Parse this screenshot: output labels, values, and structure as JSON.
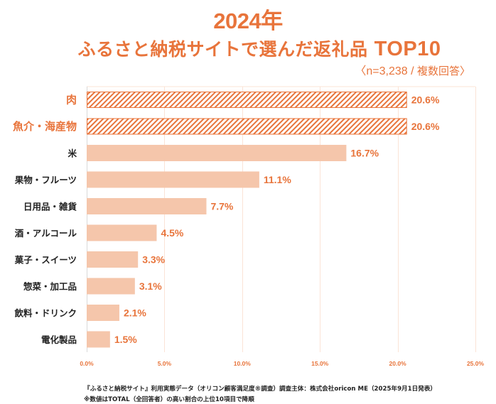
{
  "header": {
    "year": "2024年",
    "title_jp": "ふるさと納税サイトで選んだ返礼品 ",
    "title_en": "TOP10",
    "sample_prefix": "〈n=3,238 / ",
    "sample_jp": "複数回答〉"
  },
  "colors": {
    "accent": "#E8743B",
    "bar_fill": "#F5C6AB",
    "highlight_hatch": "#E8743B",
    "gridline": "#FBE3D6",
    "text_dark": "#222222"
  },
  "chart_data": {
    "type": "bar",
    "orientation": "horizontal",
    "title": "2024年 ふるさと納税サイトで選んだ返礼品 TOP10",
    "subtitle": "〈n=3,238 / 複数回答〉",
    "xlabel": "",
    "ylabel": "",
    "xlim": [
      0,
      25
    ],
    "x_ticks": [
      0,
      5,
      10,
      15,
      20,
      25
    ],
    "x_tick_labels": [
      "0.0%",
      "5.0%",
      "10.0%",
      "15.0%",
      "20.0%",
      "25.0%"
    ],
    "grid": true,
    "legend": "none",
    "categories": [
      "肉",
      "魚介・海産物",
      "米",
      "果物・フルーツ",
      "日用品・雑貨",
      "酒・アルコール",
      "菓子・スイーツ",
      "惣菜・加工品",
      "飲料・ドリンク",
      "電化製品"
    ],
    "values": [
      20.6,
      20.6,
      16.7,
      11.1,
      7.7,
      4.5,
      3.3,
      3.1,
      2.1,
      1.5
    ],
    "value_labels": [
      "20.6%",
      "20.6%",
      "16.7%",
      "11.1%",
      "7.7%",
      "4.5%",
      "3.3%",
      "3.1%",
      "2.1%",
      "1.5%"
    ],
    "highlighted": [
      true,
      true,
      false,
      false,
      false,
      false,
      false,
      false,
      false,
      false
    ]
  },
  "footnotes": {
    "line1": "『ふるさと納税サイト』利用実態データ（オリコン顧客満足度®調査）調査主体：株式会社oricon ME（2025年9月1日発表）",
    "line2": "※数値はTOTAL（全回答者）の高い割合の上位10項目で降順"
  }
}
